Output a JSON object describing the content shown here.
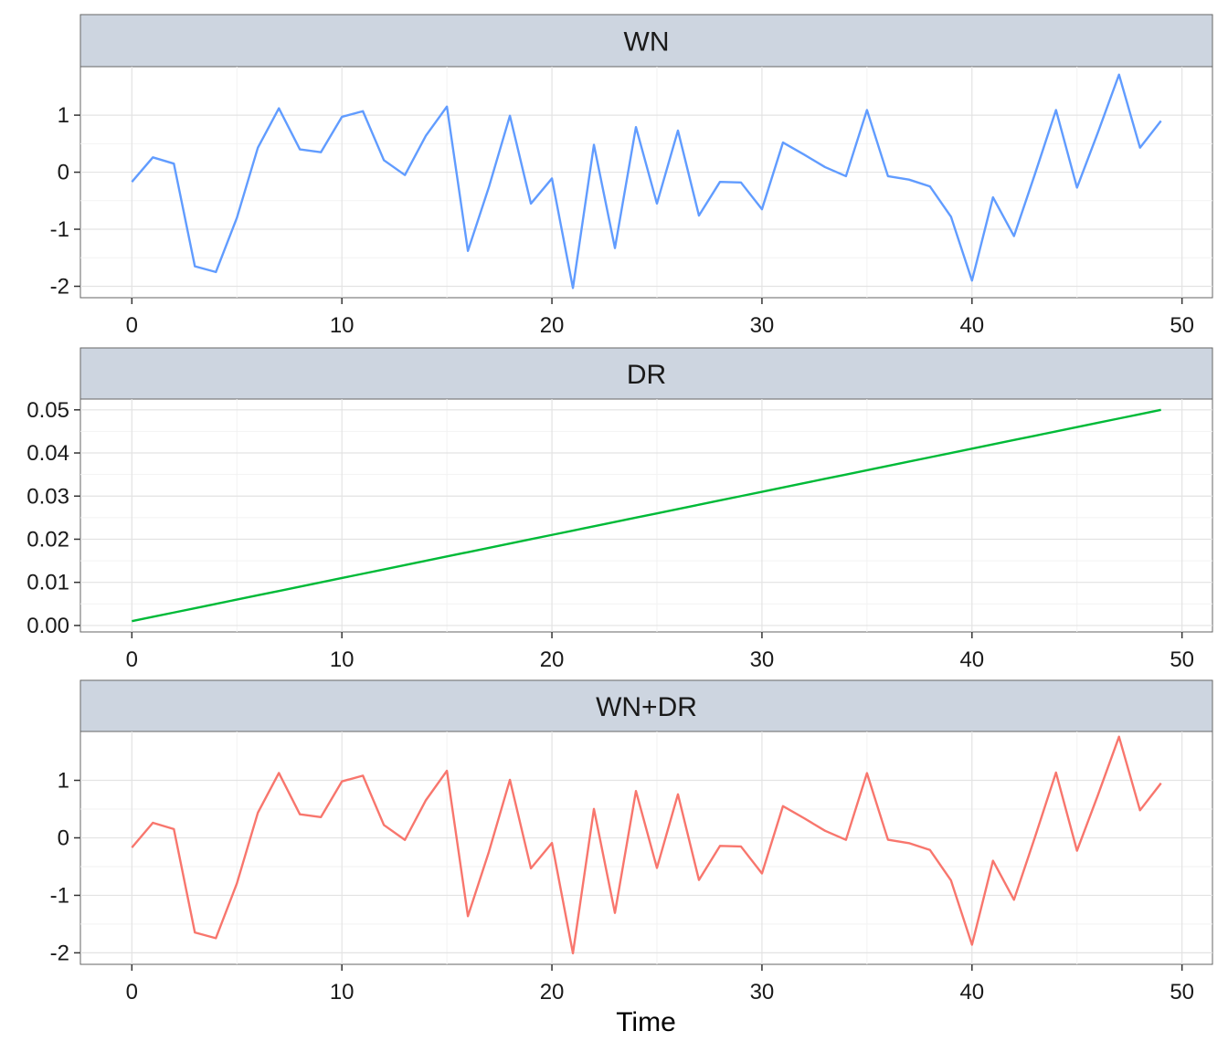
{
  "chart_data": {
    "type": "line",
    "xlabel": "Time",
    "x": [
      0,
      1,
      2,
      3,
      4,
      5,
      6,
      7,
      8,
      9,
      10,
      11,
      12,
      13,
      14,
      15,
      16,
      17,
      18,
      19,
      20,
      21,
      22,
      23,
      24,
      25,
      26,
      27,
      28,
      29,
      30,
      31,
      32,
      33,
      34,
      35,
      36,
      37,
      38,
      39,
      40,
      41,
      42,
      43,
      44,
      45,
      46,
      47,
      48,
      49
    ],
    "xlim": [
      -2.45,
      51.45
    ],
    "xticks": [
      0,
      10,
      20,
      30,
      40,
      50
    ],
    "grid": true,
    "panels": [
      {
        "strip": "WN",
        "color": "#619cff",
        "ylim": [
          -2.2,
          1.85
        ],
        "yticks": [
          -2,
          -1,
          0,
          1
        ],
        "ytick_labels": [
          "-2",
          "-1",
          "0",
          "1"
        ],
        "values": [
          -0.17,
          0.26,
          0.15,
          -1.65,
          -1.75,
          -0.8,
          0.43,
          1.12,
          0.4,
          0.35,
          0.97,
          1.07,
          0.21,
          -0.05,
          0.64,
          1.15,
          -1.38,
          -0.26,
          0.99,
          -0.55,
          -0.11,
          -2.03,
          0.48,
          -1.33,
          0.79,
          -0.55,
          0.73,
          -0.76,
          -0.17,
          -0.18,
          -0.65,
          0.52,
          0.31,
          0.09,
          -0.07,
          1.09,
          -0.07,
          -0.13,
          -0.25,
          -0.78,
          -1.9,
          -0.44,
          -1.12,
          -0.03,
          1.09,
          -0.27,
          0.7,
          1.71,
          0.43,
          0.9
        ]
      },
      {
        "strip": "DR",
        "color": "#00ba38",
        "ylim": [
          -0.0015,
          0.0525
        ],
        "yticks": [
          0,
          0.01,
          0.02,
          0.03,
          0.04,
          0.05
        ],
        "ytick_labels": [
          "0.00",
          "0.01",
          "0.02",
          "0.03",
          "0.04",
          "0.05"
        ],
        "values": [
          0.001,
          0.002,
          0.003,
          0.004,
          0.005,
          0.006,
          0.007,
          0.008,
          0.009,
          0.01,
          0.011,
          0.012,
          0.013,
          0.014,
          0.015,
          0.016,
          0.017,
          0.018,
          0.019,
          0.02,
          0.021,
          0.022,
          0.023,
          0.024,
          0.025,
          0.026,
          0.027,
          0.028,
          0.029,
          0.03,
          0.031,
          0.032,
          0.033,
          0.034,
          0.035,
          0.036,
          0.037,
          0.038,
          0.039,
          0.04,
          0.041,
          0.042,
          0.043,
          0.044,
          0.045,
          0.046,
          0.047,
          0.048,
          0.049,
          0.05
        ]
      },
      {
        "strip": "WN+DR",
        "color": "#f8766d",
        "ylim": [
          -2.2,
          1.85
        ],
        "yticks": [
          -2,
          -1,
          0,
          1
        ],
        "ytick_labels": [
          "-2",
          "-1",
          "0",
          "1"
        ],
        "values": [
          -0.169,
          0.262,
          0.153,
          -1.646,
          -1.745,
          -0.794,
          0.437,
          1.128,
          0.409,
          0.36,
          0.981,
          1.082,
          0.223,
          -0.036,
          0.655,
          1.166,
          -1.363,
          -0.242,
          1.009,
          -0.53,
          -0.089,
          -2.008,
          0.503,
          -1.306,
          0.815,
          -0.524,
          0.757,
          -0.732,
          -0.141,
          -0.15,
          -0.619,
          0.552,
          0.343,
          0.124,
          -0.035,
          1.126,
          -0.033,
          -0.092,
          -0.211,
          -0.74,
          -1.859,
          -0.398,
          -1.077,
          0.014,
          1.135,
          -0.224,
          0.747,
          1.758,
          0.479,
          0.95
        ]
      }
    ]
  }
}
